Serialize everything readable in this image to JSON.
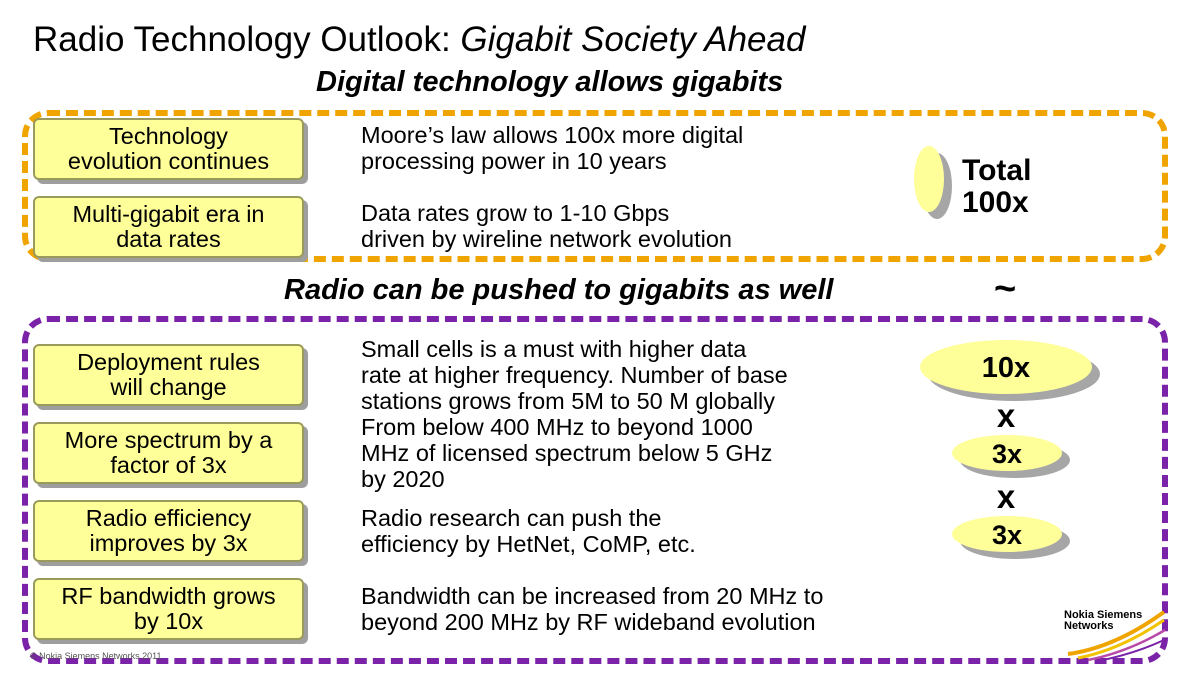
{
  "title": {
    "main": "Radio Technology Outlook:",
    "emphasis": "Gigabit Society Ahead"
  },
  "digital": {
    "heading": "Digital technology allows gigabits",
    "items": [
      {
        "box": [
          "Technology",
          "evolution continues"
        ],
        "desc": [
          "Moore’s law allows 100x more digital",
          "processing power in 10 years"
        ]
      },
      {
        "box": [
          "Multi-gigabit era in",
          "data rates"
        ],
        "desc": [
          "Data rates grow to 1-10 Gbps",
          "driven by wireline network evolution"
        ]
      }
    ],
    "total": [
      "Total",
      "100x"
    ]
  },
  "radio": {
    "heading": "Radio can be pushed to gigabits as well",
    "approx": "~",
    "items": [
      {
        "box": [
          "Deployment rules",
          "will change"
        ]
      },
      {
        "box": [
          "More spectrum by a",
          "factor of 3x"
        ]
      },
      {
        "box": [
          "Radio efficiency",
          "improves by 3x"
        ]
      },
      {
        "box": [
          "RF bandwidth grows",
          "by 10x"
        ]
      }
    ],
    "desc_block": [
      "Small cells is a must with higher data",
      "rate at higher frequency. Number of base",
      "stations grows from 5M to 50 M globally",
      "From below 400 MHz to beyond 1000",
      "MHz of licensed spectrum below 5 GHz",
      "by 2020"
    ],
    "desc_efficiency": [
      "Radio research can push the",
      "efficiency by HetNet, CoMP, etc."
    ],
    "desc_bandwidth": [
      "Bandwidth can be increased from 20 MHz to",
      "beyond 200 MHz by RF wideband evolution"
    ],
    "factors": [
      "10x",
      "x",
      "3x",
      "x",
      "3x"
    ]
  },
  "logo": [
    "Nokia Siemens",
    "Networks"
  ],
  "footer": "© Nokia Siemens Networks 2011",
  "colors": {
    "orange_frame": "#f0a400",
    "purple_frame": "#7a22a8",
    "box_fill": "#ffff99"
  }
}
